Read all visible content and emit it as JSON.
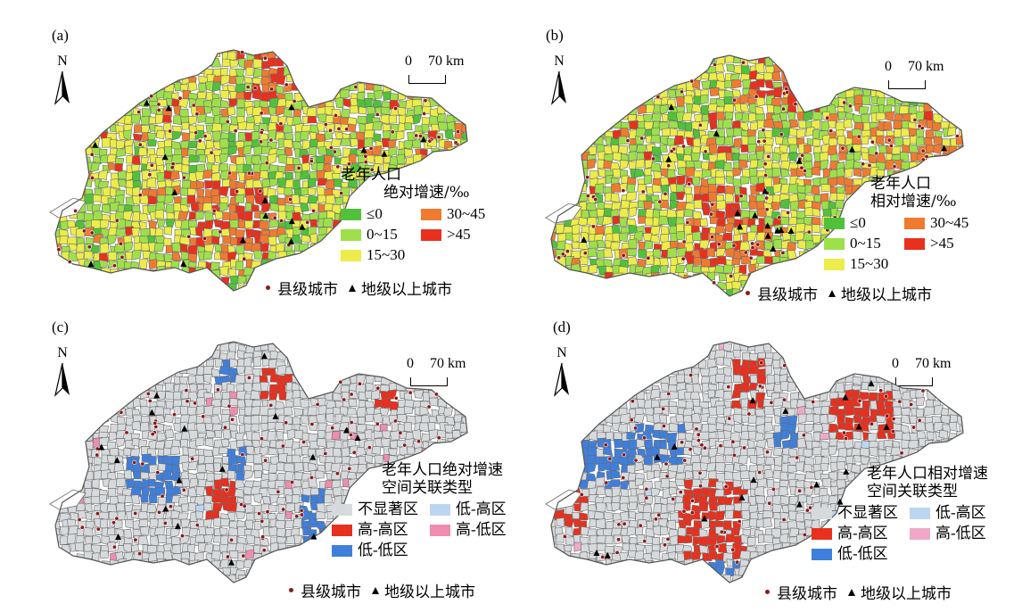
{
  "panels": [
    {
      "label": "(a)",
      "kind": "gradient",
      "legend_title_1": "老年人口",
      "legend_title_2": "绝对增速/‰",
      "legend_items": [
        {
          "label": "≤0",
          "color": "#4fc23a"
        },
        {
          "label": "30~45",
          "color": "#f07a30"
        },
        {
          "label": "0~15",
          "color": "#9ee04a"
        },
        {
          "label": ">45",
          "color": "#e8301e"
        },
        {
          "label": "15~30",
          "color": "#ecec4a"
        }
      ]
    },
    {
      "label": "(b)",
      "kind": "gradient",
      "legend_title_1": "老年人口",
      "legend_title_2": "相对增速/‰",
      "legend_items": [
        {
          "label": "≤0",
          "color": "#4fc23a"
        },
        {
          "label": "30~45",
          "color": "#f07a30"
        },
        {
          "label": "0~15",
          "color": "#9ee04a"
        },
        {
          "label": ">45",
          "color": "#e8301e"
        },
        {
          "label": "15~30",
          "color": "#ecec4a"
        }
      ]
    },
    {
      "label": "(c)",
      "kind": "type",
      "legend_title_1": "老年人口绝对增速",
      "legend_title_2": "空间关联类型",
      "legend_items": [
        {
          "label": "不显著区",
          "color": "#d7dadc"
        },
        {
          "label": "低-高区",
          "color": "#bcd6f2"
        },
        {
          "label": "高-高区",
          "color": "#e8301e"
        },
        {
          "label": "高-低区",
          "color": "#f08cb0"
        },
        {
          "label": "低-低区",
          "color": "#3f7fdc"
        }
      ]
    },
    {
      "label": "(d)",
      "kind": "type",
      "legend_title_1": "老年人口相对增速",
      "legend_title_2": "空间关联类型",
      "legend_items": [
        {
          "label": "不显著区",
          "color": "#d7dadc"
        },
        {
          "label": "低-高区",
          "color": "#bcd6f2"
        },
        {
          "label": "高-高区",
          "color": "#e8301e"
        },
        {
          "label": "高-低区",
          "color": "#f0a8c8"
        },
        {
          "label": "低-低区",
          "color": "#3f7fdc"
        }
      ]
    }
  ],
  "north_label": "N",
  "scale_zero": "0",
  "scale_label": "70 km",
  "county_city_label": "县级城市",
  "prefecture_city_label": "地级以上城市",
  "colors": {
    "boundary": "#6b6b6b",
    "county_dot": "#8b1a1a",
    "prefecture_triangle": "#000000"
  }
}
